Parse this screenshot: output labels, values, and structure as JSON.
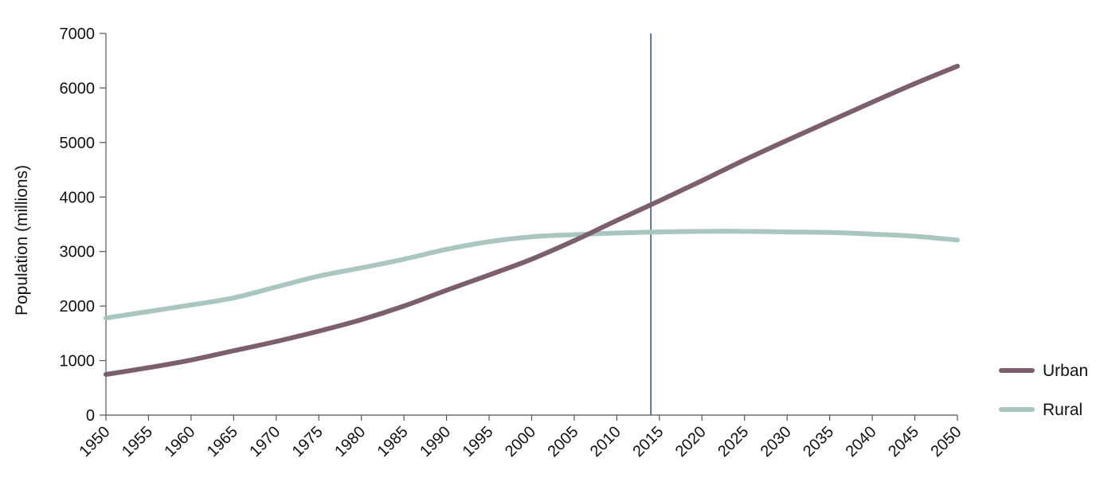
{
  "colors": {
    "urban": "#7c5f6f",
    "rural": "#a9c6c0",
    "axis": "#555555",
    "marker_line": "#3e5a68",
    "text": "#111111"
  },
  "chart_data": {
    "type": "line",
    "title": "",
    "xlabel": "",
    "ylabel": "Population (millions)",
    "x": [
      1950,
      1955,
      1960,
      1965,
      1970,
      1975,
      1980,
      1985,
      1990,
      1995,
      2000,
      2005,
      2010,
      2015,
      2020,
      2025,
      2030,
      2035,
      2040,
      2045,
      2050
    ],
    "xlim": [
      1950,
      2050
    ],
    "ylim": [
      0,
      7000
    ],
    "yticks": [
      0,
      1000,
      2000,
      3000,
      4000,
      5000,
      6000,
      7000
    ],
    "xticks": [
      "1950",
      "1955",
      "1960",
      "1965",
      "1970",
      "1975",
      "1980",
      "1985",
      "1990",
      "1995",
      "2000",
      "2005",
      "2010",
      "2015",
      "2020",
      "2025",
      "2030",
      "2035",
      "2040",
      "2045",
      "2050"
    ],
    "grid": false,
    "legend_position": "bottom-right",
    "vertical_line_x": 2014,
    "series": [
      {
        "name": "Urban",
        "color_key": "urban",
        "values": [
          745,
          870,
          1010,
          1180,
          1350,
          1540,
          1750,
          2000,
          2290,
          2570,
          2860,
          3200,
          3570,
          3930,
          4300,
          4680,
          5040,
          5390,
          5740,
          6080,
          6400
        ]
      },
      {
        "name": "Rural",
        "color_key": "rural",
        "values": [
          1780,
          1900,
          2020,
          2150,
          2350,
          2550,
          2700,
          2860,
          3040,
          3180,
          3270,
          3310,
          3340,
          3360,
          3370,
          3370,
          3360,
          3350,
          3320,
          3280,
          3210
        ]
      }
    ]
  }
}
